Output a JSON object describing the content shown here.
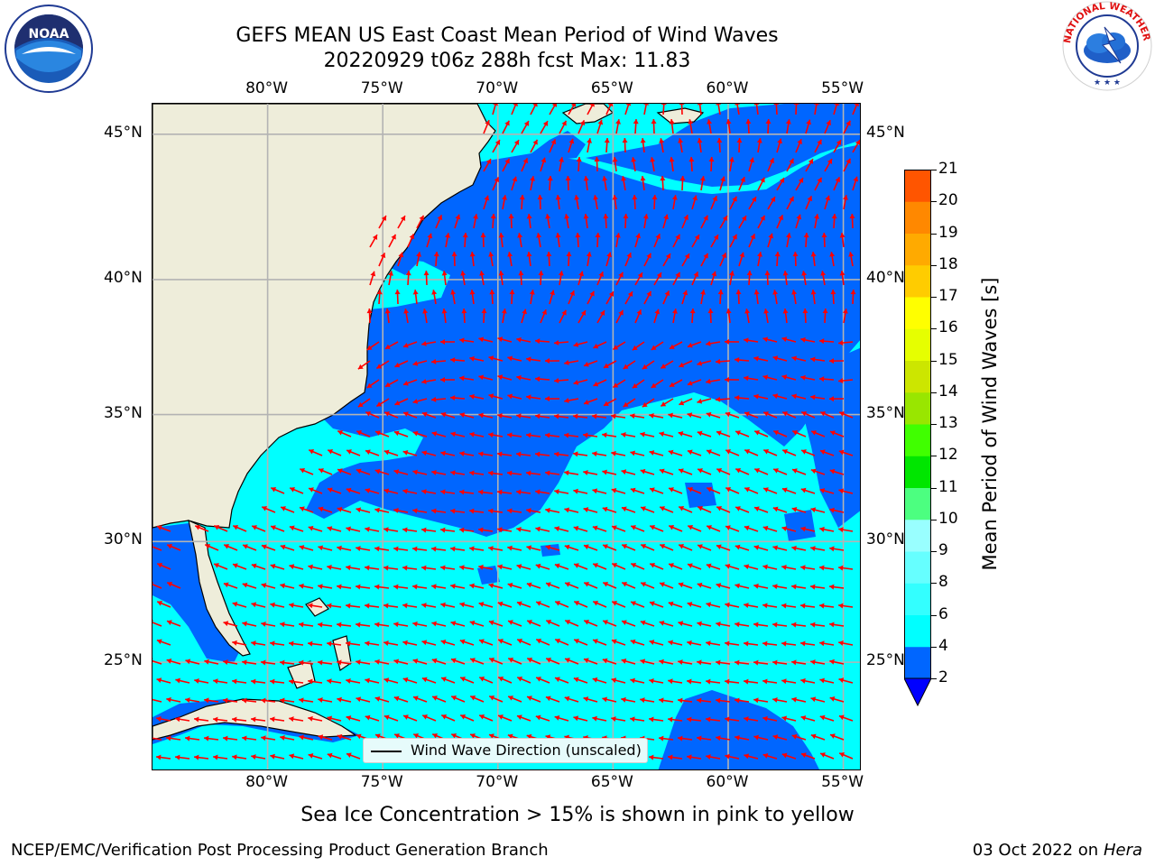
{
  "title": {
    "line1": "GEFS MEAN US East Coast Mean Period of Wind Waves",
    "line2": "20220929 t06z 288h fcst   Max: 11.83"
  },
  "logos": {
    "left": {
      "icon": "noaa-logo",
      "text": "NOAA",
      "ring": "NATIONAL OCEANIC AND ATMOSPHERIC ADMINISTRATION · U.S. DEPARTMENT OF COMMERCE"
    },
    "right": {
      "icon": "nws-logo",
      "ring": "NATIONAL WEATHER SERVICE"
    }
  },
  "map": {
    "lon_labels": [
      "80°W",
      "75°W",
      "70°W",
      "65°W",
      "60°W",
      "55°W"
    ],
    "lat_labels_left": [
      "45°N",
      "40°N",
      "35°N",
      "30°N",
      "25°N"
    ],
    "lat_labels_right": [
      "45°N",
      "40°N",
      "35°N",
      "30°N",
      "25°N"
    ],
    "lon_range": [
      -85,
      -54.2
    ],
    "lat_range": [
      20.3,
      46
    ],
    "projection": "mercator",
    "land_color": "#eeedda",
    "grid_color": "#b3b3b3",
    "arrow_color": "#ff0000",
    "arrow_direction": "westward (wind wave direction, unscaled)"
  },
  "legend": {
    "label": "Wind Wave Direction (unscaled)"
  },
  "colorbar": {
    "label": "Mean Period of Wind Waves [s]",
    "ticks": [
      "2",
      "4",
      "6",
      "8",
      "9",
      "10",
      "11",
      "12",
      "13",
      "14",
      "15",
      "16",
      "17",
      "18",
      "19",
      "20",
      "21"
    ],
    "colors": [
      "#0066ff",
      "#00ffff",
      "#33ffff",
      "#66ffff",
      "#99ffff",
      "#4cff80",
      "#00e600",
      "#40ff00",
      "#99e600",
      "#cce600",
      "#e6ff00",
      "#ffff00",
      "#ffcc00",
      "#ffaa00",
      "#ff8800",
      "#ff5500",
      "#ff2200",
      "#ff0000"
    ],
    "extend_color": "#0000ff"
  },
  "note": "Sea Ice Concentration > 15% is shown in pink to yellow",
  "footer": {
    "credit": "NCEP/EMC/Verification Post Processing Product Generation Branch",
    "date_prefix": "03 Oct 2022 on ",
    "machine": "Hera"
  }
}
